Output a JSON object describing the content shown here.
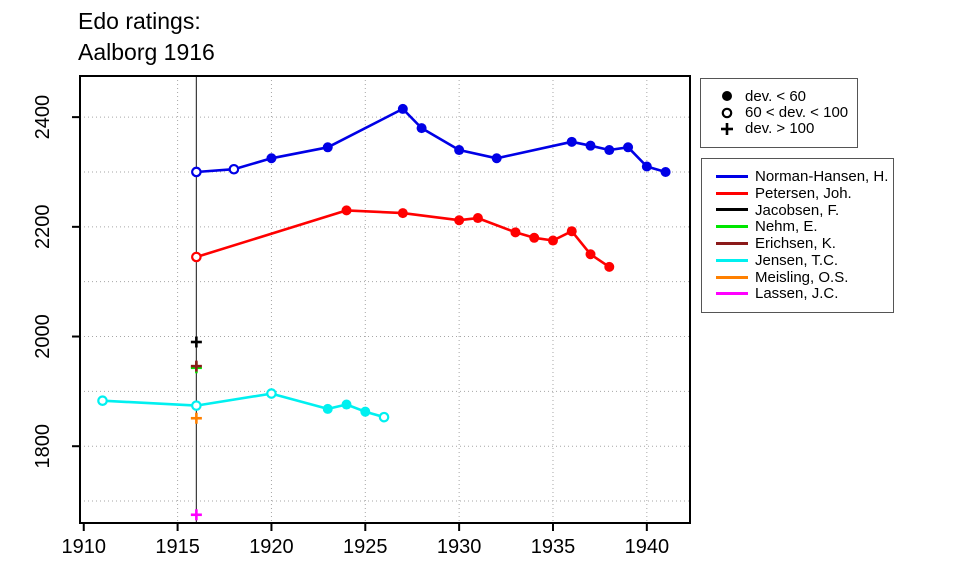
{
  "title": {
    "line1": "Edo ratings:",
    "line2": "Aalborg 1916"
  },
  "marker_legend": {
    "items": [
      {
        "marker": "filled-circle",
        "label": "dev. < 60"
      },
      {
        "marker": "open-circle",
        "label": "60 < dev. < 100"
      },
      {
        "marker": "plus",
        "label": "dev. > 100"
      }
    ]
  },
  "series_legend": {
    "items": [
      {
        "label": "Norman-Hansen, H.",
        "color": "#0000E6"
      },
      {
        "label": "Petersen, Joh.",
        "color": "#FF0000"
      },
      {
        "label": "Jacobsen, F.",
        "color": "#000000"
      },
      {
        "label": "Nehm, E.",
        "color": "#00E600"
      },
      {
        "label": "Erichsen, K.",
        "color": "#8B1A1A"
      },
      {
        "label": "Jensen, T.C.",
        "color": "#00F0F0"
      },
      {
        "label": "Meisling, O.S.",
        "color": "#FF8000"
      },
      {
        "label": "Lassen, J.C.",
        "color": "#FF00FF"
      }
    ]
  },
  "chart_data": {
    "type": "line",
    "title": "Edo ratings: Aalborg 1916",
    "xlabel": "",
    "ylabel": "",
    "xlim": [
      1909.8,
      1942.3
    ],
    "ylim": [
      1660,
      2475
    ],
    "x_ticks": [
      1910,
      1915,
      1920,
      1925,
      1930,
      1935,
      1940
    ],
    "y_ticks": [
      1800,
      2000,
      2200,
      2400
    ],
    "x_grid": [
      1915,
      1920,
      1925,
      1930,
      1935,
      1940
    ],
    "y_grid": [
      1700,
      1800,
      1900,
      2000,
      2100,
      2200,
      2300,
      2400
    ],
    "grid": "dotted",
    "legend_position": "right-outside",
    "event_year_line": 1916,
    "marker_meaning": {
      "filled": "dev. < 60",
      "open": "60 < dev. < 100",
      "plus": "dev. > 100"
    },
    "series": [
      {
        "name": "Norman-Hansen, H.",
        "color": "#0000E6",
        "points": [
          [
            1916,
            2300,
            "open"
          ],
          [
            1918,
            2305,
            "open"
          ],
          [
            1920,
            2325,
            "filled"
          ],
          [
            1923,
            2345,
            "filled"
          ],
          [
            1927,
            2415,
            "filled"
          ],
          [
            1928,
            2380,
            "filled"
          ],
          [
            1930,
            2340,
            "filled"
          ],
          [
            1932,
            2325,
            "filled"
          ],
          [
            1936,
            2355,
            "filled"
          ],
          [
            1937,
            2348,
            "filled"
          ],
          [
            1938,
            2340,
            "filled"
          ],
          [
            1939,
            2345,
            "filled"
          ],
          [
            1940,
            2310,
            "filled"
          ],
          [
            1941,
            2300,
            "filled"
          ]
        ]
      },
      {
        "name": "Petersen, Joh.",
        "color": "#FF0000",
        "points": [
          [
            1916,
            2145,
            "open"
          ],
          [
            1924,
            2230,
            "filled"
          ],
          [
            1927,
            2225,
            "filled"
          ],
          [
            1930,
            2212,
            "filled"
          ],
          [
            1931,
            2216,
            "filled"
          ],
          [
            1933,
            2190,
            "filled"
          ],
          [
            1934,
            2180,
            "filled"
          ],
          [
            1935,
            2175,
            "filled"
          ],
          [
            1936,
            2192,
            "filled"
          ],
          [
            1937,
            2150,
            "filled"
          ],
          [
            1938,
            2127,
            "filled"
          ]
        ]
      },
      {
        "name": "Jacobsen, F.",
        "color": "#000000",
        "points": [
          [
            1916,
            1990,
            "plus"
          ]
        ]
      },
      {
        "name": "Nehm, E.",
        "color": "#00E600",
        "points": [
          [
            1916,
            1943,
            "plus"
          ]
        ]
      },
      {
        "name": "Erichsen, K.",
        "color": "#8B1A1A",
        "points": [
          [
            1916,
            1946,
            "plus"
          ]
        ]
      },
      {
        "name": "Jensen, T.C.",
        "color": "#00F0F0",
        "points": [
          [
            1911,
            1883,
            "open"
          ],
          [
            1916,
            1874,
            "open"
          ],
          [
            1920,
            1896,
            "open"
          ],
          [
            1923,
            1868,
            "filled"
          ],
          [
            1924,
            1876,
            "filled"
          ],
          [
            1925,
            1863,
            "filled"
          ],
          [
            1926,
            1853,
            "open"
          ]
        ]
      },
      {
        "name": "Meisling, O.S.",
        "color": "#FF8000",
        "points": [
          [
            1916,
            1851,
            "plus"
          ]
        ]
      },
      {
        "name": "Lassen, J.C.",
        "color": "#FF00FF",
        "points": [
          [
            1916,
            1675,
            "plus"
          ]
        ]
      }
    ]
  }
}
